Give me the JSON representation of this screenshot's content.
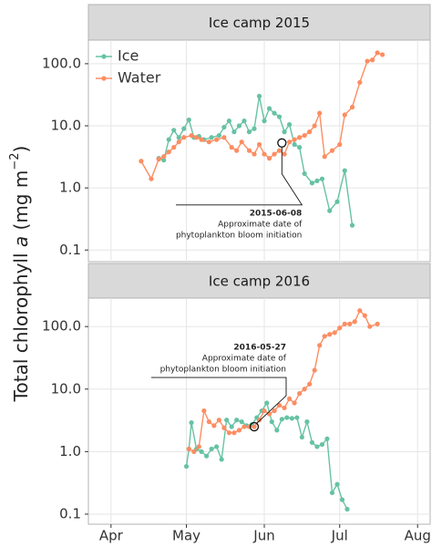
{
  "y_label": [
    "Total chlorophyll ",
    "a",
    " (mg m",
    "−2",
    ")"
  ],
  "chart_data": [
    {
      "type": "line",
      "title": "Ice camp 2015",
      "log_y": true,
      "grid": true,
      "legend": "top-left",
      "xlim": [
        82,
        218
      ],
      "xticks": [
        {
          "value": 91,
          "label": "Apr"
        },
        {
          "value": 121,
          "label": "May"
        },
        {
          "value": 152,
          "label": "Jun"
        },
        {
          "value": 182,
          "label": "Jul"
        },
        {
          "value": 213,
          "label": "Aug"
        }
      ],
      "ylim": [
        0.065,
        240
      ],
      "yticks": [
        {
          "value": 0.1,
          "label": "0.1"
        },
        {
          "value": 1,
          "label": "1.0"
        },
        {
          "value": 10,
          "label": "10.0"
        },
        {
          "value": 100,
          "label": "100.0"
        }
      ],
      "series": [
        {
          "name": "Ice",
          "color": "#66c2a5",
          "x": [
            110,
            112,
            114,
            116,
            118,
            120,
            122,
            124,
            126,
            128,
            131,
            134,
            136,
            138,
            140,
            142,
            144,
            146,
            148,
            150,
            152,
            154,
            156,
            158,
            160,
            162,
            164,
            166,
            168,
            171,
            173,
            175,
            178,
            181,
            184,
            187
          ],
          "values": [
            3.0,
            2.8,
            6.0,
            8.5,
            6.5,
            9.0,
            12.5,
            6.5,
            6.8,
            6.0,
            6.5,
            7.0,
            9.5,
            12.0,
            8.0,
            10.0,
            12.0,
            8.0,
            9.0,
            30.0,
            12.0,
            19.0,
            16.0,
            14.0,
            8.0,
            10.5,
            5.0,
            4.5,
            1.7,
            1.2,
            1.3,
            1.4,
            0.43,
            0.6,
            1.9,
            0.25
          ]
        },
        {
          "name": "Water",
          "color": "#fc8d62",
          "x": [
            103,
            107,
            110,
            112,
            114,
            116,
            118,
            120,
            123,
            125,
            127,
            130,
            133,
            136,
            139,
            141,
            143,
            146,
            148,
            150,
            152,
            154,
            156,
            158,
            160,
            162,
            164,
            166,
            168,
            170,
            172,
            174,
            176,
            179,
            182,
            184,
            187,
            190,
            193,
            195,
            197,
            199
          ],
          "values": [
            2.7,
            1.4,
            2.9,
            3.2,
            3.8,
            4.5,
            5.5,
            6.5,
            7.0,
            6.5,
            6.0,
            5.5,
            6.0,
            6.5,
            4.5,
            4.0,
            5.5,
            4.0,
            3.5,
            5.0,
            3.5,
            3.0,
            3.5,
            4.0,
            3.5,
            5.5,
            6.0,
            6.5,
            7.0,
            8.0,
            10.0,
            16.0,
            3.2,
            4.0,
            5.0,
            15.0,
            20.0,
            50.0,
            110.0,
            115.0,
            150.0,
            140.0
          ]
        }
      ],
      "annotation": {
        "label": "2015-06-08",
        "lines": [
          "Approximate date of",
          "phytoplankton bloom initiation"
        ],
        "x": 159,
        "y": 5.3
      }
    },
    {
      "type": "line",
      "title": "Ice camp 2016",
      "log_y": true,
      "grid": true,
      "xlim": [
        82,
        218
      ],
      "xticks": [
        {
          "value": 91,
          "label": "Apr"
        },
        {
          "value": 121,
          "label": "May"
        },
        {
          "value": 152,
          "label": "Jun"
        },
        {
          "value": 182,
          "label": "Jul"
        },
        {
          "value": 213,
          "label": "Aug"
        }
      ],
      "ylim": [
        0.069,
        285
      ],
      "yticks": [
        {
          "value": 0.1,
          "label": "0.1"
        },
        {
          "value": 1,
          "label": "1.0"
        },
        {
          "value": 10,
          "label": "10.0"
        },
        {
          "value": 100,
          "label": "100.0"
        }
      ],
      "series": [
        {
          "color": "#66c2a5",
          "x": [
            121,
            122,
            123,
            125,
            127,
            129,
            131,
            133,
            135,
            137,
            139,
            141,
            143,
            145,
            147,
            149,
            151,
            153,
            155,
            157,
            159,
            161,
            163,
            165,
            167,
            169,
            171,
            173,
            175,
            177,
            179,
            181,
            183,
            185
          ],
          "values": [
            0.58,
            1.1,
            2.9,
            1.1,
            1.0,
            0.85,
            1.1,
            1.2,
            0.75,
            3.2,
            2.5,
            3.2,
            3.0,
            2.6,
            2.7,
            3.5,
            4.5,
            6.0,
            3.0,
            2.2,
            3.3,
            3.5,
            3.4,
            3.5,
            1.7,
            3.0,
            1.4,
            1.2,
            1.3,
            1.6,
            0.22,
            0.3,
            0.17,
            0.12
          ]
        },
        {
          "color": "#fc8d62",
          "x": [
            122,
            124,
            126,
            128,
            130,
            132,
            134,
            136,
            138,
            140,
            142,
            144,
            146,
            148,
            150,
            152,
            154,
            156,
            158,
            160,
            162,
            164,
            166,
            168,
            170,
            172,
            174,
            176,
            178,
            180,
            182,
            184,
            186,
            188,
            190,
            192,
            194,
            197
          ],
          "values": [
            1.1,
            1.0,
            1.2,
            4.5,
            3.0,
            2.6,
            3.2,
            2.4,
            2.0,
            2.0,
            2.2,
            2.5,
            2.5,
            2.5,
            3.2,
            4.5,
            4.0,
            4.5,
            5.5,
            5.0,
            7.0,
            6.0,
            8.5,
            10.0,
            12.0,
            20.0,
            50.0,
            70.0,
            75.0,
            80.0,
            95.0,
            110.0,
            110.0,
            120.0,
            180.0,
            150.0,
            100.0,
            110.0
          ]
        }
      ],
      "annotation": {
        "label": "2016-05-27",
        "lines": [
          "Approximate date of",
          "phytoplankton bloom initiation"
        ],
        "x": 148,
        "y": 2.5
      }
    }
  ]
}
